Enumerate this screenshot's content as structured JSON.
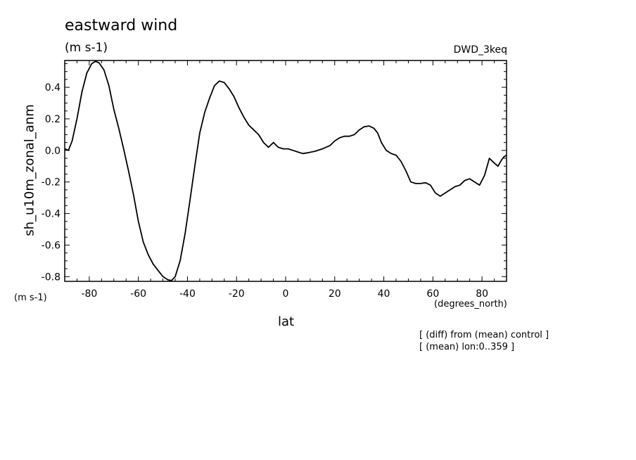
{
  "chart_data": {
    "type": "line",
    "title": "eastward wind",
    "units_label": "(m s-1)",
    "model_label": "DWD_3keq",
    "ylabel": "sh_u10m_zonal_anm",
    "xlabel": "lat",
    "y_units": "(m s-1)",
    "x_units": "(degrees_north)",
    "notes": [
      "[ (diff) from (mean) control ]",
      "[ (mean) lon:0..359 ]"
    ],
    "xlim": [
      -90,
      90
    ],
    "ylim": [
      -0.83,
      0.57
    ],
    "x_ticks": [
      -80,
      -60,
      -40,
      -20,
      0,
      20,
      40,
      60,
      80
    ],
    "x_tick_labels": [
      "-80",
      "-60",
      "-40",
      "-20",
      "0",
      "20",
      "40",
      "60",
      "80"
    ],
    "y_ticks": [
      -0.8,
      -0.6,
      -0.4,
      -0.2,
      0.0,
      0.2,
      0.4
    ],
    "y_tick_labels": [
      "-0.8",
      "-0.6",
      "-0.4",
      "-0.2",
      "0.0",
      "0.2",
      "0.4"
    ],
    "grid": false,
    "line_color": "#000000",
    "series": [
      {
        "x": [
          -90,
          -88.5,
          -87,
          -85,
          -83,
          -81,
          -79,
          -77.5,
          -76,
          -74,
          -72,
          -70,
          -68,
          -66,
          -64,
          -62,
          -60,
          -58,
          -56,
          -54,
          -52,
          -50,
          -48,
          -46.5,
          -45,
          -43,
          -41,
          -39,
          -37,
          -35,
          -33,
          -31,
          -29,
          -27,
          -25,
          -23,
          -21,
          -19,
          -17,
          -15,
          -13,
          -11,
          -9,
          -7,
          -5,
          -3,
          -1,
          0,
          1,
          3,
          5,
          7,
          9,
          12,
          15,
          18,
          20,
          22,
          24,
          26,
          28,
          30,
          32,
          34,
          36,
          37.5,
          39,
          41,
          43,
          45,
          47,
          49,
          51,
          53,
          55,
          57,
          59,
          61,
          63,
          65,
          67,
          69,
          71,
          73,
          75,
          77,
          79,
          81,
          83,
          85,
          86.5,
          88,
          89,
          90
        ],
        "y": [
          0.01,
          0.0,
          0.06,
          0.2,
          0.37,
          0.49,
          0.55,
          0.565,
          0.555,
          0.51,
          0.41,
          0.26,
          0.14,
          0.01,
          -0.13,
          -0.28,
          -0.45,
          -0.58,
          -0.66,
          -0.72,
          -0.76,
          -0.8,
          -0.82,
          -0.825,
          -0.8,
          -0.7,
          -0.53,
          -0.32,
          -0.1,
          0.11,
          0.24,
          0.33,
          0.41,
          0.44,
          0.43,
          0.39,
          0.34,
          0.27,
          0.21,
          0.16,
          0.13,
          0.1,
          0.05,
          0.02,
          0.05,
          0.02,
          0.01,
          0.01,
          0.01,
          0.0,
          -0.01,
          -0.02,
          -0.015,
          -0.005,
          0.01,
          0.03,
          0.06,
          0.08,
          0.09,
          0.09,
          0.1,
          0.13,
          0.15,
          0.155,
          0.14,
          0.11,
          0.05,
          0.0,
          -0.02,
          -0.03,
          -0.07,
          -0.13,
          -0.2,
          -0.21,
          -0.21,
          -0.205,
          -0.22,
          -0.27,
          -0.29,
          -0.27,
          -0.25,
          -0.23,
          -0.22,
          -0.19,
          -0.18,
          -0.2,
          -0.22,
          -0.16,
          -0.05,
          -0.08,
          -0.1,
          -0.06,
          -0.04,
          -0.03
        ]
      }
    ]
  }
}
